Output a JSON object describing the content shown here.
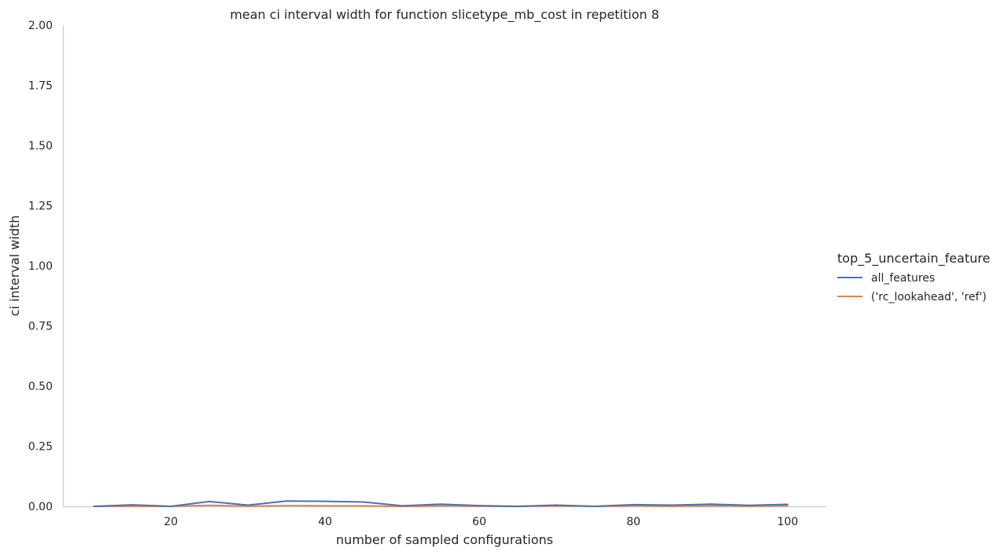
{
  "chart_data": {
    "type": "line",
    "title": "mean ci interval width for function slicetype_mb_cost in repetition 8",
    "xlabel": "number of sampled configurations",
    "ylabel": "ci interval width",
    "xlim": [
      6,
      105
    ],
    "ylim": [
      0,
      2
    ],
    "xticks": [
      20,
      40,
      60,
      80,
      100
    ],
    "yticks": [
      0.0,
      0.25,
      0.5,
      0.75,
      1.0,
      1.25,
      1.5,
      1.75,
      2.0
    ],
    "x_tick_labels": [
      "20",
      "40",
      "60",
      "80",
      "100"
    ],
    "y_tick_labels": [
      "0.00",
      "0.25",
      "0.50",
      "0.75",
      "1.00",
      "1.25",
      "1.50",
      "1.75",
      "2.00"
    ],
    "grid": false,
    "legend": {
      "title": "top_5_uncertain_feature",
      "placement": "right"
    },
    "x": [
      10,
      15,
      20,
      25,
      30,
      35,
      40,
      45,
      50,
      55,
      60,
      65,
      70,
      75,
      80,
      85,
      90,
      95,
      100
    ],
    "series": [
      {
        "name": "all_features",
        "color": "#4c72b0",
        "values": [
          0.0,
          0.006,
          0.0,
          0.02,
          0.005,
          0.022,
          0.021,
          0.018,
          0.002,
          0.009,
          0.003,
          0.0,
          0.005,
          0.0,
          0.007,
          0.005,
          0.009,
          0.004,
          0.008
        ]
      },
      {
        "name": "('rc_lookahead', 'ref')",
        "color": "#dd8452",
        "values": [
          0.0,
          0.001,
          0.0,
          0.004,
          0.001,
          0.003,
          0.002,
          0.002,
          0.0,
          0.002,
          0.001,
          0.0,
          0.002,
          0.0,
          0.002,
          0.001,
          0.002,
          0.001,
          0.002
        ]
      }
    ]
  }
}
